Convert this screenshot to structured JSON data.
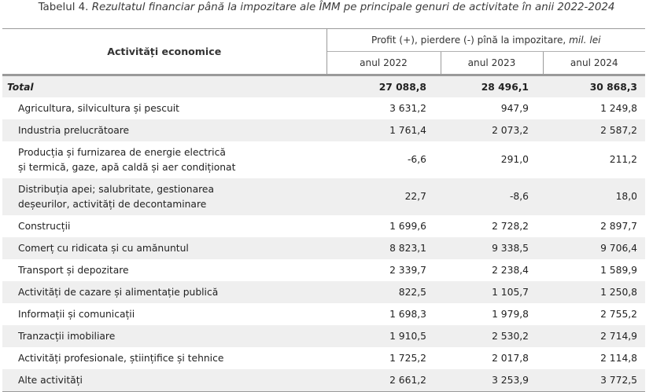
{
  "caption": {
    "prefix": "Tabelul 4.",
    "title": "Rezultatul financiar până la impozitare ale ÎMM pe principale genuri de activitate în anii 2022-2024"
  },
  "header": {
    "activity": "Activități economice",
    "profit": "Profit (+), pierdere (-) pînă la impozitare,",
    "unit": "mil. lei",
    "years": [
      "anul 2022",
      "anul 2023",
      "anul 2024"
    ]
  },
  "rows": [
    {
      "name": "Total",
      "lines": [
        "Total"
      ],
      "values": [
        "27 088,8",
        "28 496,1",
        "30 868,3"
      ]
    },
    {
      "name": "Agricultura, silvicultura și pescuit",
      "lines": [
        "Agricultura, silvicultura și pescuit"
      ],
      "values": [
        "3 631,2",
        "947,9",
        "1 249,8"
      ]
    },
    {
      "name": "Industria prelucrătoare",
      "lines": [
        "Industria prelucrătoare"
      ],
      "values": [
        "1 761,4",
        "2 073,2",
        "2 587,2"
      ]
    },
    {
      "name": "Producția și furnizarea de energie electrică și termică, gaze, apă caldă și aer condiționat",
      "lines": [
        "Producția și furnizarea de energie electrică",
        "și termică, gaze, apă caldă și aer condiționat"
      ],
      "values": [
        "-6,6",
        "291,0",
        "211,2"
      ]
    },
    {
      "name": "Distribuția apei; salubritate, gestionarea deșeurilor, activități de decontaminare",
      "lines": [
        "Distribuția apei; salubritate, gestionarea",
        "deșeurilor, activități de decontaminare"
      ],
      "values": [
        "22,7",
        "-8,6",
        "18,0"
      ]
    },
    {
      "name": "Construcții",
      "lines": [
        "Construcții"
      ],
      "values": [
        "1 699,6",
        "2 728,2",
        "2 897,7"
      ]
    },
    {
      "name": "Comerț cu ridicata și cu amănuntul",
      "lines": [
        "Comerț cu ridicata și cu amănuntul"
      ],
      "values": [
        "8 823,1",
        "9 338,5",
        "9 706,4"
      ]
    },
    {
      "name": "Transport și depozitare",
      "lines": [
        "Transport și depozitare"
      ],
      "values": [
        "2 339,7",
        "2 238,4",
        "1 589,9"
      ]
    },
    {
      "name": "Activități de cazare și alimentație publică",
      "lines": [
        "Activități de cazare și alimentație publică"
      ],
      "values": [
        "822,5",
        "1 105,7",
        "1 250,8"
      ]
    },
    {
      "name": "Informații și comunicații",
      "lines": [
        "Informații și comunicații"
      ],
      "values": [
        "1 698,3",
        "1 979,8",
        "2 755,2"
      ]
    },
    {
      "name": "Tranzacții imobiliare",
      "lines": [
        "Tranzacții imobiliare"
      ],
      "values": [
        "1 910,5",
        "2 530,2",
        "2 714,9"
      ]
    },
    {
      "name": "Activități profesionale, științifice și tehnice",
      "lines": [
        "Activități profesionale, științifice și tehnice"
      ],
      "values": [
        "1 725,2",
        "2 017,8",
        "2 114,8"
      ]
    },
    {
      "name": "Alte activități",
      "lines": [
        "Alte activități"
      ],
      "values": [
        "2 661,2",
        "3 253,9",
        "3 772,5"
      ]
    }
  ]
}
